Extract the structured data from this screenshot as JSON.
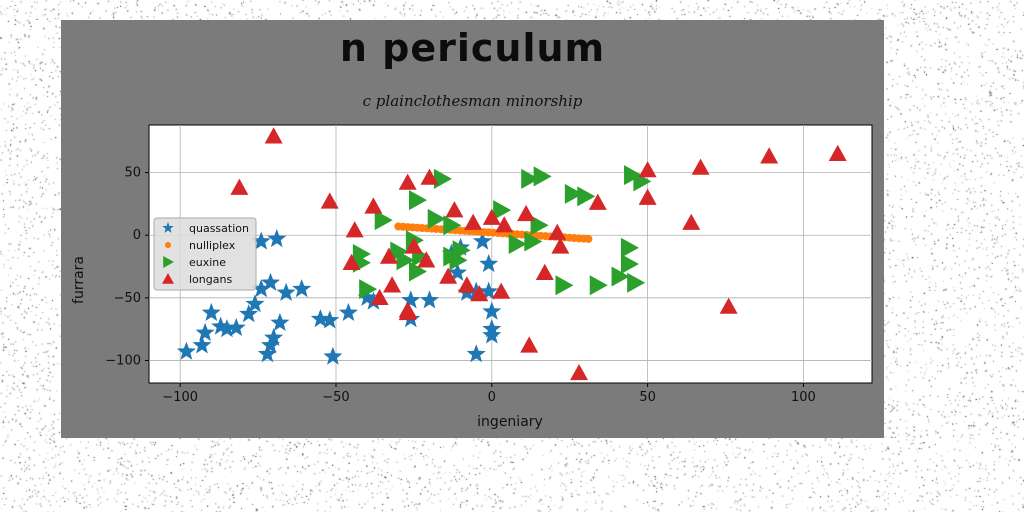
{
  "chart_data": {
    "type": "scatter",
    "title": "n periculum",
    "subtitle": "c plainclothesman minorship",
    "xlabel": "ingeniary",
    "ylabel": "furrara",
    "xlim": [
      -110,
      122
    ],
    "ylim": [
      -118,
      88
    ],
    "xticks": [
      -100,
      -50,
      0,
      50,
      100
    ],
    "yticks": [
      50,
      0,
      -50,
      -100
    ],
    "xtick_labels": [
      "−100",
      "−50",
      "0",
      "50",
      "100"
    ],
    "ytick_labels": [
      "50",
      "0",
      "−50",
      "−100"
    ],
    "grid": true,
    "legend_position": "center-left",
    "series": [
      {
        "name": "quassation",
        "marker": "star",
        "color": "#1f77b4",
        "points": [
          [
            -98,
            -93
          ],
          [
            -93,
            -88
          ],
          [
            -92,
            -78
          ],
          [
            -90,
            -62
          ],
          [
            -87,
            -73
          ],
          [
            -85,
            -75
          ],
          [
            -82,
            -74
          ],
          [
            -78,
            -63
          ],
          [
            -76,
            -55
          ],
          [
            -74,
            -43
          ],
          [
            -72,
            -95
          ],
          [
            -71,
            -88
          ],
          [
            -70,
            -82
          ],
          [
            -68,
            -70
          ],
          [
            -71,
            -38
          ],
          [
            -69,
            -3
          ],
          [
            -74,
            -5
          ],
          [
            -66,
            -46
          ],
          [
            -61,
            -43
          ],
          [
            -55,
            -67
          ],
          [
            -52,
            -68
          ],
          [
            -51,
            -97
          ],
          [
            -46,
            -62
          ],
          [
            -40,
            -50
          ],
          [
            -38,
            -53
          ],
          [
            -26,
            -52
          ],
          [
            -26,
            -67
          ],
          [
            -20,
            -52
          ],
          [
            -13,
            -15
          ],
          [
            -11,
            -30
          ],
          [
            -10,
            -10
          ],
          [
            -8,
            -46
          ],
          [
            -5,
            -45
          ],
          [
            -5,
            -95
          ],
          [
            -3,
            -5
          ],
          [
            -1,
            -23
          ],
          [
            -1,
            -45
          ],
          [
            0,
            -61
          ],
          [
            0,
            -75
          ],
          [
            0,
            -80
          ]
        ]
      },
      {
        "name": "nulliplex",
        "marker": "circle",
        "color": "#ff7f0e",
        "line": [
          [
            -30,
            7
          ],
          [
            31,
            -3
          ]
        ]
      },
      {
        "name": "euxine",
        "marker": "triangle-right",
        "color": "#2ca02c",
        "points": [
          [
            -35,
            12
          ],
          [
            -42,
            -15
          ],
          [
            -42,
            -22
          ],
          [
            -40,
            -43
          ],
          [
            -30,
            -13
          ],
          [
            -28,
            -20
          ],
          [
            -24,
            28
          ],
          [
            -25,
            -4
          ],
          [
            -24,
            -29
          ],
          [
            -23,
            -17
          ],
          [
            -18,
            13
          ],
          [
            -16,
            45
          ],
          [
            -13,
            8
          ],
          [
            -13,
            -17
          ],
          [
            -11,
            -20
          ],
          [
            -10,
            -12
          ],
          [
            3,
            20
          ],
          [
            8,
            -7
          ],
          [
            13,
            -5
          ],
          [
            12,
            45
          ],
          [
            15,
            8
          ],
          [
            16,
            47
          ],
          [
            23,
            -40
          ],
          [
            26,
            33
          ],
          [
            30,
            31
          ],
          [
            34,
            -40
          ],
          [
            41,
            -33
          ],
          [
            44,
            -10
          ],
          [
            44,
            -23
          ],
          [
            45,
            48
          ],
          [
            48,
            43
          ],
          [
            46,
            -38
          ]
        ]
      },
      {
        "name": "longans",
        "marker": "triangle-up",
        "color": "#d62728",
        "points": [
          [
            -70,
            79
          ],
          [
            -81,
            38
          ],
          [
            -52,
            27
          ],
          [
            -44,
            4
          ],
          [
            -45,
            -22
          ],
          [
            -38,
            23
          ],
          [
            -33,
            -17
          ],
          [
            -32,
            -40
          ],
          [
            -36,
            -50
          ],
          [
            -27,
            42
          ],
          [
            -25,
            -9
          ],
          [
            -21,
            -20
          ],
          [
            -20,
            46
          ],
          [
            -14,
            -33
          ],
          [
            -12,
            20
          ],
          [
            -8,
            -40
          ],
          [
            -6,
            10
          ],
          [
            -4,
            -47
          ],
          [
            0,
            14
          ],
          [
            4,
            8
          ],
          [
            3,
            -45
          ],
          [
            11,
            17
          ],
          [
            17,
            -30
          ],
          [
            21,
            2
          ],
          [
            22,
            -9
          ],
          [
            12,
            -88
          ],
          [
            28,
            -110
          ],
          [
            34,
            26
          ],
          [
            50,
            52
          ],
          [
            50,
            30
          ],
          [
            64,
            10
          ],
          [
            67,
            54
          ],
          [
            76,
            -57
          ],
          [
            89,
            63
          ],
          [
            111,
            65
          ],
          [
            -27,
            -60
          ],
          [
            -27,
            -62
          ]
        ]
      }
    ]
  }
}
